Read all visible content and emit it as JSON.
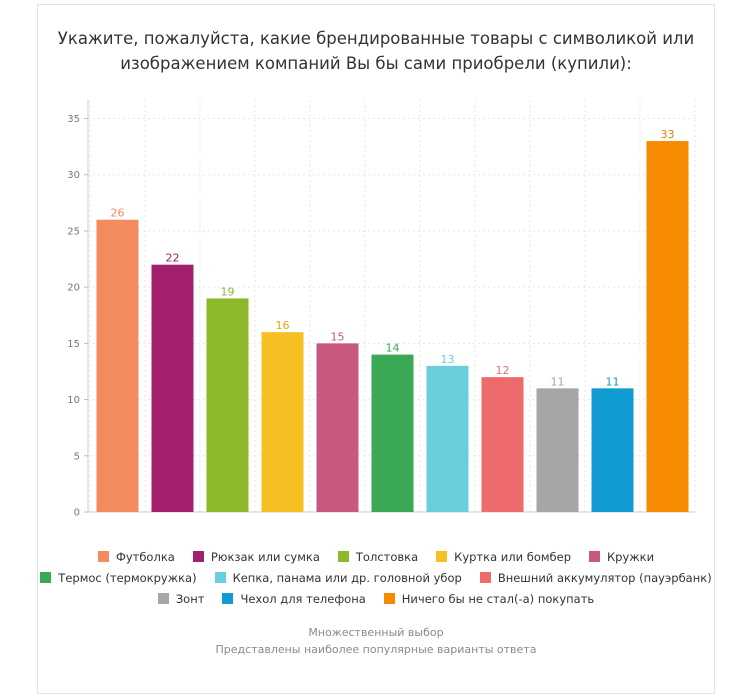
{
  "chart_data": {
    "type": "bar",
    "title_lines": [
      "Укажите, пожалуйста, какие брендированные товары с символикой или",
      "изображением компаний Вы бы сами приобрели (купили):"
    ],
    "categories": [
      "Футболка",
      "Рюкзак или сумка",
      "Толстовка",
      "Куртка или бомбер",
      "Кружки",
      "Термос (термокружка)",
      "Кепка, панама или др. головной убор",
      "Внешний аккумулятор (пауэрбанк)",
      "Зонт",
      "Чехол для телефона",
      "Ничего бы не стал(-а) покупать"
    ],
    "values": [
      26,
      22,
      19,
      16,
      15,
      14,
      13,
      12,
      11,
      11,
      33
    ],
    "colors": [
      "#f28b5e",
      "#a3206f",
      "#8db82a",
      "#f6c022",
      "#c9587f",
      "#3aa855",
      "#6acfdc",
      "#ee6b6b",
      "#a6a6a6",
      "#109bd3",
      "#f68b00"
    ],
    "label_colors": [
      "#f28b5e",
      "#a3206f",
      "#8db82a",
      "#e0a800",
      "#c9587f",
      "#3aa855",
      "#6acfdc",
      "#ee6b6b",
      "#a6a6a6",
      "#109bd3",
      "#e08000"
    ],
    "yticks": [
      0,
      5,
      10,
      15,
      20,
      25,
      30,
      35
    ],
    "ylim": [
      0,
      35
    ],
    "xlabel": "",
    "ylabel": "",
    "legend_position": "bottom",
    "grid": true
  },
  "footnotes": [
    "Множественный выбор",
    "Представлены наиболее популярные варианты ответа"
  ]
}
